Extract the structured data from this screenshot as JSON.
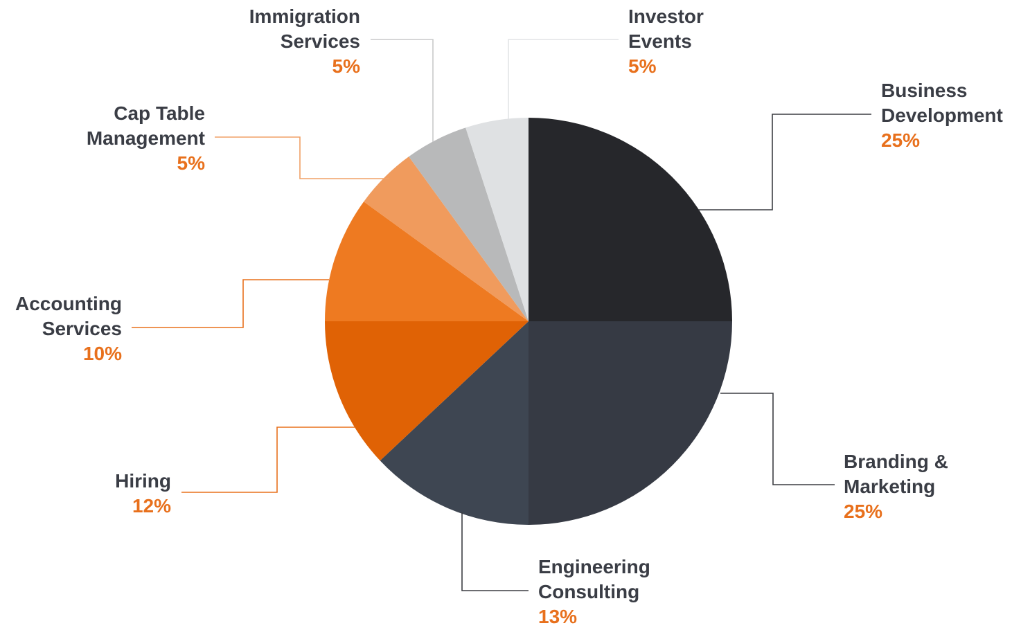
{
  "chart_data": {
    "type": "pie",
    "title": "",
    "start_angle_deg": 0,
    "direction": "clockwise",
    "label_color": "#3a3d45",
    "value_color": "#e8701c",
    "connector_light_color": "#e6e8ea",
    "slices": [
      {
        "label": [
          "Business",
          "Development"
        ],
        "value": 25,
        "display": "25%",
        "color": "#26272b",
        "connector_color": "#3b3d42"
      },
      {
        "label": [
          "Branding &",
          "Marketing"
        ],
        "value": 25,
        "display": "25%",
        "color": "#363a44",
        "connector_color": "#3b3d42"
      },
      {
        "label": [
          "Engineering",
          "Consulting"
        ],
        "value": 13,
        "display": "13%",
        "color": "#3e4652",
        "connector_color": "#3b3d42"
      },
      {
        "label": [
          "Hiring"
        ],
        "value": 12,
        "display": "12%",
        "color": "#e06205",
        "connector_color": "#e8701c"
      },
      {
        "label": [
          "Accounting",
          "Services"
        ],
        "value": 10,
        "display": "10%",
        "color": "#ee7a21",
        "connector_color": "#e8701c"
      },
      {
        "label": [
          "Cap Table",
          "Management"
        ],
        "value": 5,
        "display": "5%",
        "color": "#f09b5d",
        "connector_color": "#f0a066"
      },
      {
        "label": [
          "Immigration",
          "Services"
        ],
        "value": 5,
        "display": "5%",
        "color": "#b8b9ba",
        "connector_color": "#c8c9ca"
      },
      {
        "label": [
          "Investor",
          "Events"
        ],
        "value": 5,
        "display": "5%",
        "color": "#dfe1e3",
        "connector_color": "#e2e4e6"
      }
    ]
  }
}
